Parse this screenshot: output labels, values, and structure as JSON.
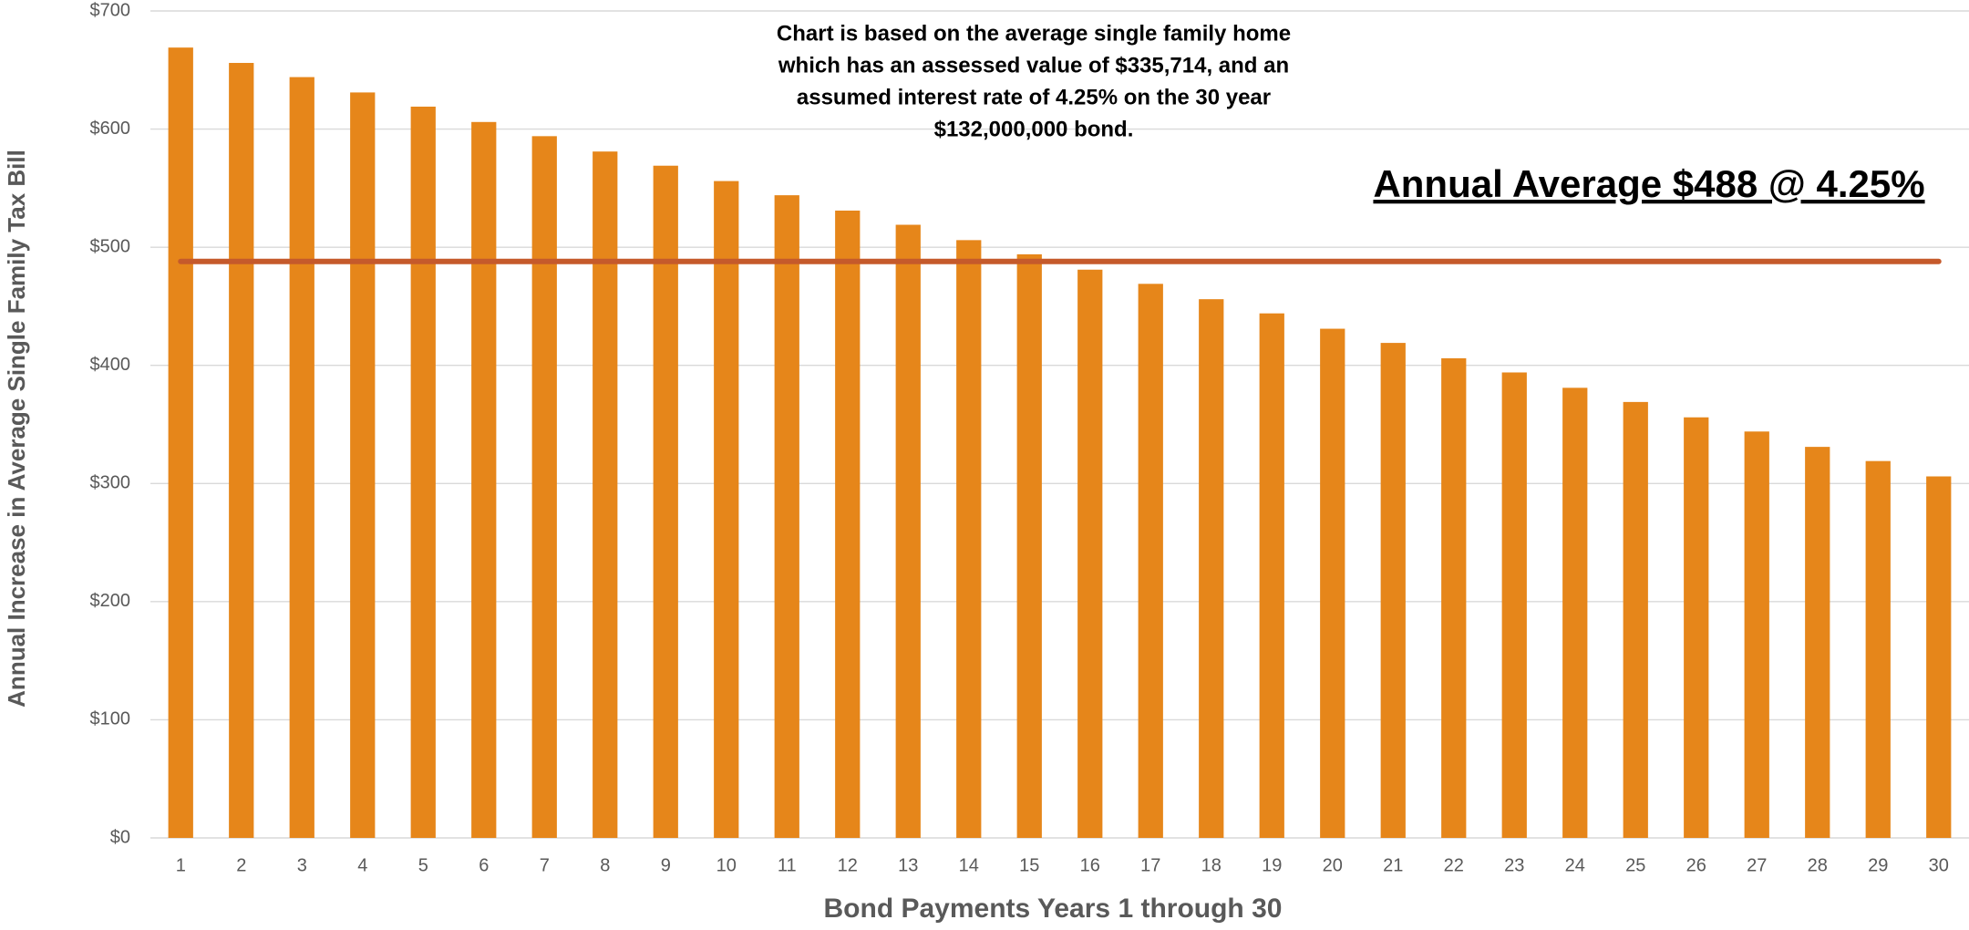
{
  "chart_data": {
    "type": "bar",
    "x_label": "Bond Payments Years 1 through 30",
    "y_label": "Annual Increase in Average Single Family Tax Bill",
    "note": [
      "Chart is based on the average single family home",
      "which has an assessed value of $335,714, and an",
      "assumed interest rate of 4.25% on the 30 year",
      "$132,000,000 bond."
    ],
    "average_label": "Annual Average $488 @ 4.25%",
    "average": {
      "value": 488,
      "color": "#c55a2b"
    },
    "categories": [
      "1",
      "2",
      "3",
      "4",
      "5",
      "6",
      "7",
      "8",
      "9",
      "10",
      "11",
      "12",
      "13",
      "14",
      "15",
      "16",
      "17",
      "18",
      "19",
      "20",
      "21",
      "22",
      "23",
      "24",
      "25",
      "26",
      "27",
      "28",
      "29",
      "30"
    ],
    "values": [
      669,
      656,
      644,
      631,
      619,
      606,
      594,
      581,
      569,
      556,
      544,
      531,
      519,
      506,
      494,
      481,
      469,
      456,
      444,
      431,
      419,
      406,
      394,
      381,
      369,
      356,
      344,
      331,
      319,
      306
    ],
    "color": "#e6861a",
    "ylim": [
      0,
      700
    ],
    "yticks": [
      {
        "value": 0,
        "label": "$0"
      },
      {
        "value": 100,
        "label": "$100"
      },
      {
        "value": 200,
        "label": "$200"
      },
      {
        "value": 300,
        "label": "$300"
      },
      {
        "value": 400,
        "label": "$400"
      },
      {
        "value": 500,
        "label": "$500"
      },
      {
        "value": 600,
        "label": "$600"
      },
      {
        "value": 700,
        "label": "$700"
      }
    ],
    "grid": true
  }
}
